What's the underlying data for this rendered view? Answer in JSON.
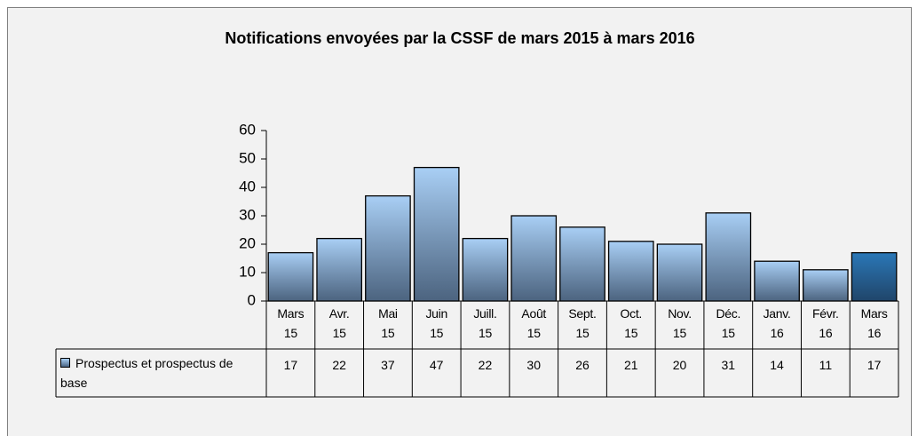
{
  "chart_data": {
    "type": "bar",
    "title": "Notifications envoyées par la CSSF de mars 2015 à mars 2016",
    "categories": [
      "Mars 15",
      "Avr. 15",
      "Mai 15",
      "Juin 15",
      "Juill. 15",
      "Août 15",
      "Sept. 15",
      "Oct. 15",
      "Nov. 15",
      "Déc. 15",
      "Janv. 16",
      "Févr. 16",
      "Mars 16"
    ],
    "series": [
      {
        "name": "Prospectus et prospectus de base",
        "values": [
          17,
          22,
          37,
          47,
          22,
          30,
          26,
          21,
          20,
          31,
          14,
          11,
          17
        ],
        "colors": [
          "#a9cff5",
          "#a9cff5",
          "#a9cff5",
          "#a9cff5",
          "#a9cff5",
          "#a9cff5",
          "#a9cff5",
          "#a9cff5",
          "#a9cff5",
          "#a9cff5",
          "#a9cff5",
          "#a9cff5",
          "#2a78b8"
        ]
      }
    ],
    "ylim": [
      0,
      60
    ],
    "yticks": [
      0,
      10,
      20,
      30,
      40,
      50,
      60
    ],
    "data_table": true
  }
}
